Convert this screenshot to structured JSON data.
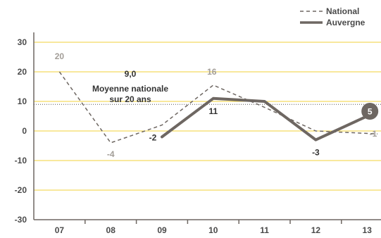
{
  "chart_data": {
    "type": "line",
    "categories": [
      "07",
      "08",
      "09",
      "10",
      "11",
      "12",
      "13"
    ],
    "ylim": [
      -30,
      30
    ],
    "yticks": [
      30,
      20,
      10,
      0,
      -10,
      -20,
      -30
    ],
    "grid": true,
    "legend_position": "top-right",
    "series": [
      {
        "name": "National",
        "style": "dashed",
        "color": "#6e6762",
        "values": [
          20,
          -4,
          null,
          16,
          null,
          null,
          -1
        ],
        "plot_values": [
          20,
          -4,
          2,
          15.5,
          8,
          0,
          -1
        ],
        "labels": [
          "20",
          "-4",
          null,
          "16",
          null,
          null,
          "-1"
        ]
      },
      {
        "name": "Auvergne",
        "style": "solid",
        "color": "#6e6762",
        "values": [
          null,
          null,
          -2,
          11,
          null,
          -3,
          5
        ],
        "plot_values": [
          null,
          null,
          -2,
          11,
          10,
          -3,
          5
        ],
        "labels": [
          null,
          null,
          "-2",
          "11",
          null,
          "-3",
          "5"
        ]
      }
    ],
    "reference_line": {
      "value": 9,
      "value_label": "9,0",
      "label_line1": "Moyenne nationale",
      "label_line2": "sur 20 ans"
    },
    "colors": {
      "grid": "#f2d13a",
      "axis": "#6e6762",
      "national_label": "#a29d97",
      "badge": "#6e6762"
    }
  }
}
